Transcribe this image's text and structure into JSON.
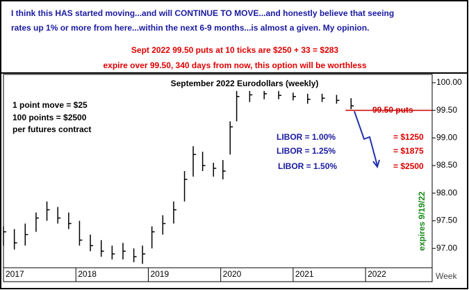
{
  "chart_data": {
    "type": "ohlc",
    "title": "September 2022 Eurodollars (weekly)",
    "annotations": [
      "I think this HAS started moving...and will CONTINUE TO MOVE...and honestly believe that seeing",
      "rates up 1% or more from here...within the next 6-9 months...is almost a given. My opinion.",
      "Sept 2022 99.50 puts at 10 ticks are $250 + 33 = $283",
      "expire over 99.50, 340 days from now, this option will be worthless",
      "1 point move = $25",
      "100 points = $2500",
      "per futures contract",
      "LIBOR = 1.00%",
      "LIBOR = 1.25%",
      "LIBOR = 1.50%",
      "= $1250",
      "= $1875",
      "= $2500",
      "expires 9/19/22",
      "Week"
    ],
    "reference_line": {
      "value": 99.5,
      "label": "99.50 puts",
      "color": "#cc0000"
    },
    "color": "#000000",
    "x": [
      2017.0,
      2017.15,
      2017.3,
      2017.45,
      2017.6,
      2017.75,
      2017.9,
      2018.05,
      2018.2,
      2018.35,
      2018.5,
      2018.65,
      2018.8,
      2018.92,
      2019.05,
      2019.2,
      2019.35,
      2019.5,
      2019.62,
      2019.75,
      2019.9,
      2020.03,
      2020.13,
      2020.22,
      2020.4,
      2020.6,
      2020.8,
      2021.0,
      2021.2,
      2021.4,
      2021.6,
      2021.8
    ],
    "low": [
      97.05,
      96.98,
      97.05,
      97.3,
      97.5,
      97.45,
      97.35,
      97.05,
      96.95,
      96.85,
      96.8,
      96.8,
      96.75,
      96.72,
      97.0,
      97.25,
      97.45,
      97.85,
      98.3,
      98.4,
      98.3,
      98.25,
      98.7,
      99.3,
      99.65,
      99.7,
      99.7,
      99.68,
      99.62,
      99.65,
      99.62,
      99.52
    ],
    "high": [
      97.4,
      97.35,
      97.45,
      97.65,
      97.85,
      97.75,
      97.65,
      97.5,
      97.25,
      97.15,
      97.05,
      97.1,
      97.0,
      97.05,
      97.4,
      97.6,
      97.85,
      98.4,
      98.85,
      98.75,
      98.55,
      98.6,
      99.3,
      99.85,
      99.85,
      99.85,
      99.85,
      99.82,
      99.8,
      99.8,
      99.78,
      99.72
    ],
    "close": [
      97.3,
      97.1,
      97.25,
      97.55,
      97.7,
      97.55,
      97.45,
      97.15,
      97.05,
      96.95,
      96.9,
      96.95,
      96.85,
      96.9,
      97.3,
      97.45,
      97.7,
      98.25,
      98.7,
      98.5,
      98.45,
      98.4,
      99.2,
      99.75,
      99.78,
      99.8,
      99.77,
      99.75,
      99.7,
      99.72,
      99.68,
      99.58
    ],
    "xlim": [
      2017,
      2022.92
    ],
    "xticks": [
      2017,
      2018,
      2019,
      2020,
      2021,
      2022
    ],
    "ylim": [
      96.65,
      100.15
    ],
    "yticks": [
      {
        "value": 97,
        "label": "97.00"
      },
      {
        "value": 97.5,
        "label": "97.50"
      },
      {
        "value": 98,
        "label": "98.00"
      },
      {
        "value": 98.5,
        "label": "98.50"
      },
      {
        "value": 99,
        "label": "99.00"
      },
      {
        "value": 99.5,
        "label": "99.50"
      },
      {
        "value": 100,
        "label": "100.00"
      }
    ],
    "grid": false
  }
}
